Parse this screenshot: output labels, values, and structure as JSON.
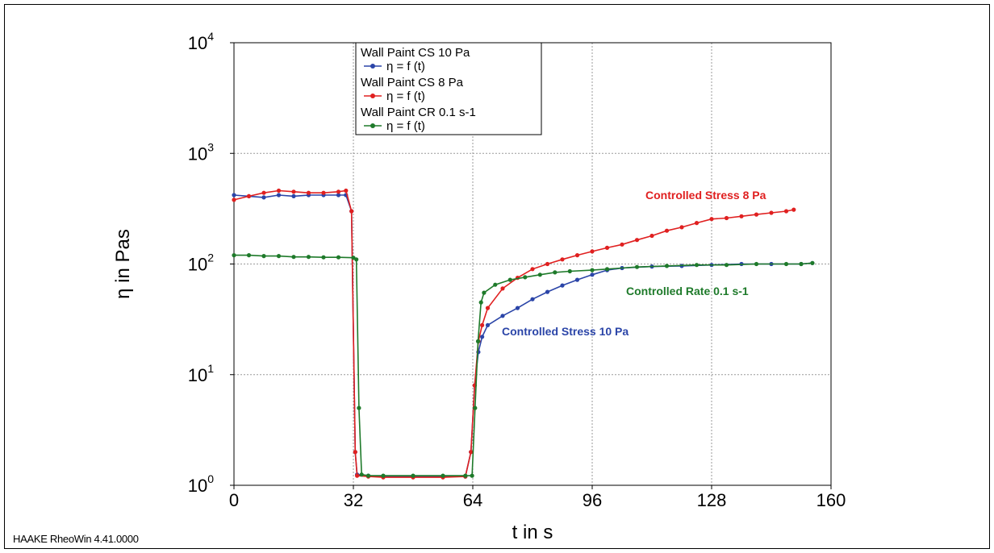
{
  "chart_data": {
    "type": "line",
    "title": "",
    "xlabel": "t in s",
    "ylabel": "η in Pas",
    "x_scale": "linear",
    "y_scale": "log",
    "xlim": [
      0,
      160
    ],
    "ylim": [
      1,
      10000
    ],
    "x_ticks": [
      "0",
      "32",
      "64",
      "96",
      "128",
      "160"
    ],
    "x_tick_values": [
      0,
      32,
      64,
      96,
      128,
      160
    ],
    "y_tick_values": [
      1,
      10,
      100,
      1000,
      10000
    ],
    "y_ticks": [
      {
        "base": "10",
        "exp": "0"
      },
      {
        "base": "10",
        "exp": "1"
      },
      {
        "base": "10",
        "exp": "2"
      },
      {
        "base": "10",
        "exp": "3"
      },
      {
        "base": "10",
        "exp": "4"
      }
    ],
    "grid": true,
    "legend_position": "top-left",
    "legend": [
      {
        "group": "Wall Paint CS 10 Pa",
        "entry": "η = f (t)",
        "color": "#2b45a8"
      },
      {
        "group": "Wall Paint CS 8 Pa",
        "entry": "η = f (t)",
        "color": "#e02020"
      },
      {
        "group": "Wall Paint CR 0.1 s-1",
        "entry": "η = f (t)",
        "color": "#1e7a2a"
      }
    ],
    "series": [
      {
        "name": "Wall Paint CS 10 Pa",
        "color": "#2b45a8",
        "annotation": "Controlled Stress 10 Pa",
        "points": [
          [
            0,
            420
          ],
          [
            4,
            410
          ],
          [
            8,
            400
          ],
          [
            12,
            420
          ],
          [
            16,
            410
          ],
          [
            20,
            420
          ],
          [
            24,
            420
          ],
          [
            28,
            420
          ],
          [
            30,
            420
          ],
          [
            31.5,
            300
          ],
          [
            32.5,
            2
          ],
          [
            33,
            1.25
          ],
          [
            36,
            1.22
          ],
          [
            40,
            1.2
          ],
          [
            48,
            1.2
          ],
          [
            56,
            1.2
          ],
          [
            62,
            1.2
          ],
          [
            63.5,
            2
          ],
          [
            64.5,
            8
          ],
          [
            65.5,
            16
          ],
          [
            66.5,
            22
          ],
          [
            68,
            28
          ],
          [
            72,
            34
          ],
          [
            76,
            40
          ],
          [
            80,
            48
          ],
          [
            84,
            56
          ],
          [
            88,
            64
          ],
          [
            92,
            72
          ],
          [
            96,
            80
          ],
          [
            100,
            88
          ],
          [
            104,
            92
          ],
          [
            112,
            95
          ],
          [
            120,
            96
          ],
          [
            128,
            98
          ],
          [
            136,
            100
          ],
          [
            144,
            100
          ],
          [
            152,
            100
          ],
          [
            155,
            102
          ]
        ]
      },
      {
        "name": "Wall Paint CS 8 Pa",
        "color": "#e02020",
        "annotation": "Controlled Stress 8 Pa",
        "points": [
          [
            0,
            380
          ],
          [
            4,
            410
          ],
          [
            8,
            440
          ],
          [
            12,
            460
          ],
          [
            16,
            450
          ],
          [
            20,
            440
          ],
          [
            24,
            440
          ],
          [
            28,
            450
          ],
          [
            30,
            460
          ],
          [
            31.5,
            300
          ],
          [
            32.5,
            2
          ],
          [
            33,
            1.22
          ],
          [
            36,
            1.2
          ],
          [
            40,
            1.18
          ],
          [
            48,
            1.18
          ],
          [
            56,
            1.18
          ],
          [
            62,
            1.2
          ],
          [
            63.5,
            2
          ],
          [
            64.5,
            8
          ],
          [
            65.5,
            20
          ],
          [
            66.5,
            28
          ],
          [
            68,
            40
          ],
          [
            72,
            60
          ],
          [
            76,
            75
          ],
          [
            80,
            90
          ],
          [
            84,
            100
          ],
          [
            88,
            110
          ],
          [
            92,
            120
          ],
          [
            96,
            130
          ],
          [
            100,
            140
          ],
          [
            104,
            150
          ],
          [
            108,
            165
          ],
          [
            112,
            180
          ],
          [
            116,
            200
          ],
          [
            120,
            215
          ],
          [
            124,
            235
          ],
          [
            128,
            255
          ],
          [
            132,
            260
          ],
          [
            136,
            270
          ],
          [
            140,
            280
          ],
          [
            144,
            290
          ],
          [
            148,
            300
          ],
          [
            150,
            310
          ]
        ]
      },
      {
        "name": "Wall Paint CR 0.1 s-1",
        "color": "#1e7a2a",
        "annotation": "Controlled Rate 0.1 s-1",
        "points": [
          [
            0,
            120
          ],
          [
            4,
            120
          ],
          [
            8,
            118
          ],
          [
            12,
            118
          ],
          [
            16,
            116
          ],
          [
            20,
            116
          ],
          [
            24,
            115
          ],
          [
            28,
            115
          ],
          [
            32,
            114
          ],
          [
            32.8,
            110
          ],
          [
            33.5,
            5
          ],
          [
            34.2,
            1.25
          ],
          [
            36,
            1.22
          ],
          [
            40,
            1.22
          ],
          [
            48,
            1.22
          ],
          [
            56,
            1.22
          ],
          [
            62,
            1.22
          ],
          [
            63.8,
            1.22
          ],
          [
            64.6,
            5
          ],
          [
            65.4,
            20
          ],
          [
            66.2,
            45
          ],
          [
            67,
            55
          ],
          [
            70,
            65
          ],
          [
            74,
            72
          ],
          [
            78,
            76
          ],
          [
            82,
            80
          ],
          [
            86,
            84
          ],
          [
            90,
            86
          ],
          [
            96,
            88
          ],
          [
            100,
            90
          ],
          [
            108,
            94
          ],
          [
            116,
            96
          ],
          [
            124,
            98
          ],
          [
            132,
            98
          ],
          [
            140,
            100
          ],
          [
            148,
            100
          ],
          [
            152,
            100
          ],
          [
            155,
            102
          ]
        ]
      }
    ],
    "annotations": [
      {
        "text": "Controlled Stress 8 Pa",
        "color": "#e02020"
      },
      {
        "text": "Controlled Rate 0.1 s-1",
        "color": "#1e7a2a"
      },
      {
        "text": "Controlled Stress 10 Pa",
        "color": "#2b45a8"
      }
    ]
  },
  "footer": "HAAKE RheoWin 4.41.0000"
}
